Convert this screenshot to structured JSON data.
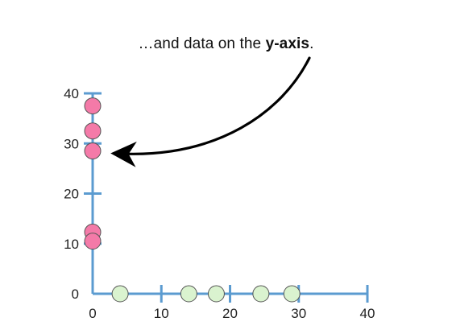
{
  "caption": {
    "prefix": "…and data on the ",
    "emphasis": "y-axis",
    "suffix": "."
  },
  "colors": {
    "axis": "#5b9bd0",
    "y_points_fill": "#f47aa8",
    "x_points_fill": "#daf3cf",
    "point_stroke": "#555555",
    "arrow": "#000000"
  },
  "chart_data": {
    "type": "scatter",
    "xlim": [
      0,
      40
    ],
    "ylim": [
      0,
      40
    ],
    "x_ticks": [
      0,
      10,
      20,
      30,
      40
    ],
    "y_ticks": [
      0,
      10,
      20,
      30,
      40
    ],
    "x_tick_labels": [
      "0",
      "10",
      "20",
      "30",
      "40"
    ],
    "y_tick_labels": [
      "0",
      "10",
      "20",
      "30",
      "40"
    ],
    "series": [
      {
        "values_on": "y-axis",
        "x": [
          0,
          0,
          0,
          0,
          0
        ],
        "y": [
          37.5,
          32.5,
          28.5,
          12.3,
          10.5
        ]
      },
      {
        "values_on": "x-axis",
        "x": [
          4,
          14,
          18,
          24.5,
          29
        ],
        "y": [
          0,
          0,
          0,
          0,
          0
        ]
      }
    ]
  }
}
